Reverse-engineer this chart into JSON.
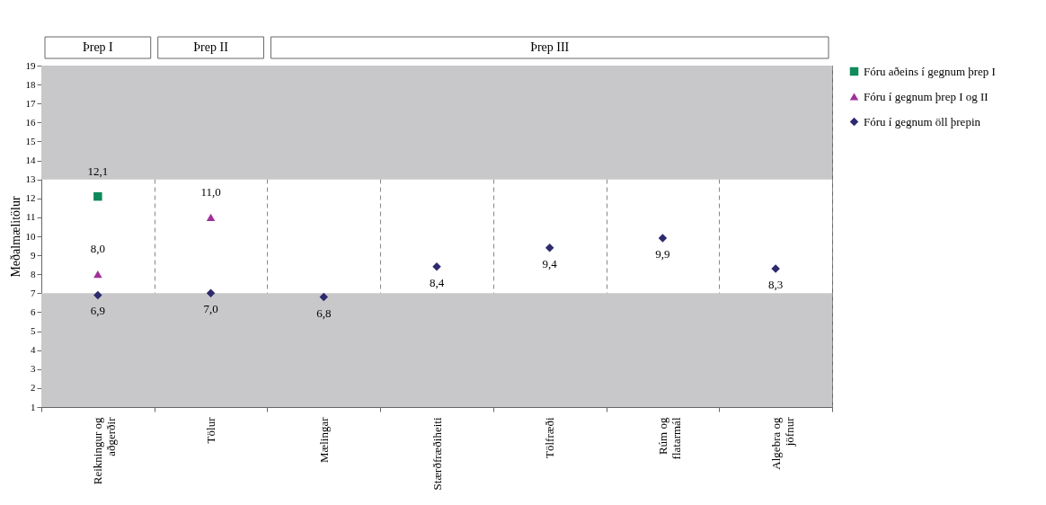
{
  "chart_data": {
    "type": "scatter",
    "categories": [
      "Reikningur og aðgerðir",
      "Tölur",
      "Mælingar",
      "Stærðfræðiheiti",
      "Tölfræði",
      "Rúm og flatarmál",
      "Algebra og jöfnur"
    ],
    "ylabel": "Meðalmælitölur",
    "ylim": [
      1,
      19
    ],
    "yticks": [
      1,
      2,
      3,
      4,
      5,
      6,
      7,
      8,
      9,
      10,
      11,
      12,
      13,
      14,
      15,
      16,
      17,
      18,
      19
    ],
    "series": [
      {
        "name": "Fóru aðeins í gegnum þrep I",
        "color": "#0f8a5a",
        "marker": "square",
        "values": [
          12.1,
          null,
          null,
          null,
          null,
          null,
          null
        ],
        "value_labels": [
          "12,1",
          null,
          null,
          null,
          null,
          null,
          null
        ]
      },
      {
        "name": "Fóru í gegnum þrep I og II",
        "color": "#a0309a",
        "marker": "triangle",
        "values": [
          8.0,
          11.0,
          null,
          null,
          null,
          null,
          null
        ],
        "value_labels": [
          "8,0",
          "11,0",
          null,
          null,
          null,
          null,
          null
        ]
      },
      {
        "name": "Fóru í gegnum öll þrepin",
        "color": "#2e2a6e",
        "marker": "diamond",
        "values": [
          6.9,
          7.0,
          6.8,
          8.4,
          9.4,
          9.9,
          8.3
        ],
        "value_labels": [
          "6,9",
          "7,0",
          "6,8",
          "8,4",
          "9,4",
          "9,9",
          "8,3"
        ]
      }
    ],
    "bands": [
      {
        "axis": "y",
        "from": 1,
        "to": 7,
        "color": "#c8c8ca"
      },
      {
        "axis": "y",
        "from": 13,
        "to": 19,
        "color": "#c8c8ca"
      }
    ],
    "annotations": [
      "Þrep I",
      "Þrep II",
      "Þrep III"
    ],
    "grid": "x",
    "legend": "right"
  }
}
